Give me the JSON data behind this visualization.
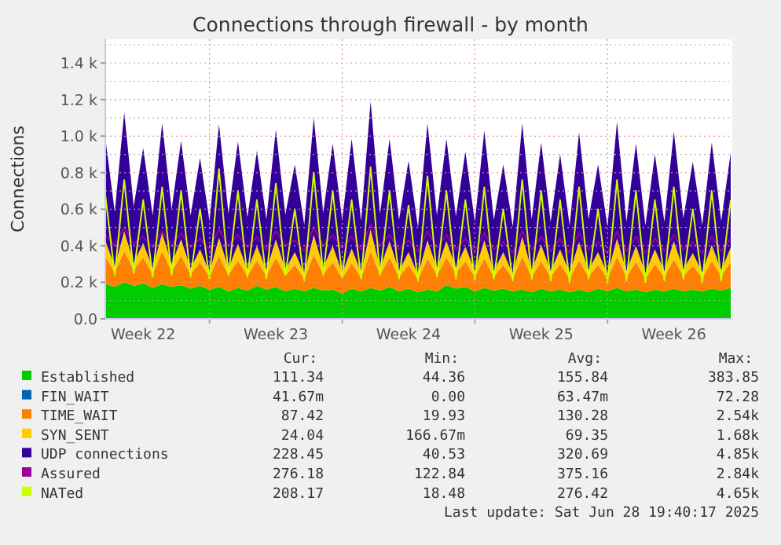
{
  "chart_data": {
    "type": "area",
    "stacked": true,
    "title": "Connections through firewall - by month",
    "ylabel": "Connections",
    "legend": "bottom",
    "grid": true,
    "x": [
      "2025-05-27T12:00",
      "2025-05-28T00:00",
      "2025-05-28T12:00",
      "2025-05-29T00:00",
      "2025-05-29T12:00",
      "2025-05-30T00:00",
      "2025-05-30T12:00",
      "2025-05-31T00:00",
      "2025-05-31T12:00",
      "2025-06-01T00:00",
      "2025-06-01T12:00",
      "2025-06-02T00:00",
      "2025-06-02T12:00",
      "2025-06-03T00:00",
      "2025-06-03T12:00",
      "2025-06-04T00:00",
      "2025-06-04T12:00",
      "2025-06-05T00:00",
      "2025-06-05T12:00",
      "2025-06-06T00:00",
      "2025-06-06T12:00",
      "2025-06-07T00:00",
      "2025-06-07T12:00",
      "2025-06-08T00:00",
      "2025-06-08T12:00",
      "2025-06-09T00:00",
      "2025-06-09T12:00",
      "2025-06-10T00:00",
      "2025-06-10T12:00",
      "2025-06-11T00:00",
      "2025-06-11T12:00",
      "2025-06-12T00:00",
      "2025-06-12T12:00",
      "2025-06-13T00:00",
      "2025-06-13T12:00",
      "2025-06-14T00:00",
      "2025-06-14T12:00",
      "2025-06-15T00:00",
      "2025-06-15T12:00",
      "2025-06-16T00:00",
      "2025-06-16T12:00",
      "2025-06-17T00:00",
      "2025-06-17T12:00",
      "2025-06-18T00:00",
      "2025-06-18T12:00",
      "2025-06-19T00:00",
      "2025-06-19T12:00",
      "2025-06-20T00:00",
      "2025-06-20T12:00",
      "2025-06-21T00:00",
      "2025-06-21T12:00",
      "2025-06-22T00:00",
      "2025-06-22T12:00",
      "2025-06-23T00:00",
      "2025-06-23T12:00",
      "2025-06-24T00:00",
      "2025-06-24T12:00",
      "2025-06-25T00:00",
      "2025-06-25T12:00",
      "2025-06-26T00:00",
      "2025-06-26T12:00",
      "2025-06-27T00:00",
      "2025-06-27T12:00",
      "2025-06-28T00:00",
      "2025-06-28T12:00",
      "2025-06-29T00:00",
      "2025-06-29T12:00"
    ],
    "xlim": [
      "2025-05-27T12:00",
      "2025-06-29T14:00"
    ],
    "xticks": [
      {
        "value": "2025-05-29T12:00",
        "label": "Week 22"
      },
      {
        "value": "2025-06-02T00:00",
        "label": null
      },
      {
        "value": "2025-06-05T12:00",
        "label": "Week 23"
      },
      {
        "value": "2025-06-09T00:00",
        "label": null
      },
      {
        "value": "2025-06-12T12:00",
        "label": "Week 24"
      },
      {
        "value": "2025-06-16T00:00",
        "label": null
      },
      {
        "value": "2025-06-19T12:00",
        "label": "Week 25"
      },
      {
        "value": "2025-06-23T00:00",
        "label": null
      },
      {
        "value": "2025-06-26T12:00",
        "label": "Week 26"
      }
    ],
    "ylim": [
      0,
      1530
    ],
    "yticks": [
      {
        "value": 0,
        "label": "0.0"
      },
      {
        "value": 100,
        "label": null
      },
      {
        "value": 200,
        "label": "0.2 k"
      },
      {
        "value": 300,
        "label": null
      },
      {
        "value": 400,
        "label": "0.4 k"
      },
      {
        "value": 500,
        "label": null
      },
      {
        "value": 600,
        "label": "0.6 k"
      },
      {
        "value": 700,
        "label": null
      },
      {
        "value": 800,
        "label": "0.8 k"
      },
      {
        "value": 900,
        "label": null
      },
      {
        "value": 1000,
        "label": "1.0 k"
      },
      {
        "value": 1100,
        "label": null
      },
      {
        "value": 1200,
        "label": "1.2 k"
      },
      {
        "value": 1300,
        "label": null
      },
      {
        "value": 1400,
        "label": "1.4 k"
      },
      {
        "value": 1500,
        "label": null
      }
    ],
    "series": [
      {
        "name": "Established",
        "color": "#00cc00",
        "values": [
          190,
          175,
          200,
          180,
          195,
          170,
          190,
          175,
          185,
          165,
          180,
          160,
          175,
          150,
          170,
          155,
          180,
          160,
          175,
          150,
          165,
          150,
          170,
          155,
          160,
          140,
          165,
          150,
          170,
          155,
          175,
          150,
          165,
          145,
          160,
          150,
          185,
          165,
          175,
          150,
          170,
          155,
          165,
          150,
          160,
          145,
          165,
          150,
          160,
          145,
          160,
          145,
          165,
          150,
          170,
          150,
          160,
          145,
          160,
          150,
          165,
          150,
          160,
          150,
          165,
          155,
          170
        ]
      },
      {
        "name": "FIN_WAIT",
        "color": "#0066b3",
        "values": [
          null,
          null,
          null,
          null,
          null,
          null,
          null,
          null,
          null,
          null,
          null,
          null,
          null,
          null,
          null,
          null,
          null,
          null,
          null,
          null,
          null,
          null,
          null,
          null,
          null,
          null,
          null,
          null,
          null,
          null,
          null,
          null,
          null,
          null,
          null,
          null,
          null,
          null,
          null,
          null,
          null,
          null,
          null,
          null,
          null,
          null,
          null,
          null,
          null,
          null,
          null,
          null,
          null,
          null,
          null,
          null,
          null,
          null,
          null,
          null,
          null,
          null,
          null,
          null,
          null,
          null,
          null
        ]
      },
      {
        "name": "TIME_WAIT",
        "color": "#ff8000",
        "values": [
          150,
          80,
          170,
          90,
          140,
          75,
          180,
          85,
          160,
          80,
          130,
          70,
          170,
          90,
          150,
          80,
          140,
          75,
          160,
          85,
          130,
          70,
          180,
          90,
          150,
          80,
          140,
          75,
          200,
          85,
          160,
          80,
          130,
          70,
          170,
          90,
          150,
          85,
          140,
          80,
          160,
          75,
          130,
          70,
          180,
          85,
          150,
          80,
          140,
          75,
          160,
          85,
          130,
          70,
          170,
          80,
          150,
          75,
          140,
          80,
          160,
          85,
          130,
          75,
          150,
          80,
          140
        ]
      },
      {
        "name": "SYN_SENT",
        "color": "#ffcc00",
        "values": [
          90,
          30,
          110,
          35,
          80,
          30,
          100,
          40,
          90,
          30,
          70,
          25,
          100,
          35,
          90,
          30,
          80,
          30,
          100,
          35,
          70,
          25,
          110,
          35,
          90,
          30,
          80,
          30,
          120,
          35,
          90,
          30,
          70,
          25,
          100,
          35,
          90,
          30,
          80,
          30,
          100,
          30,
          70,
          25,
          110,
          35,
          90,
          30,
          80,
          30,
          100,
          35,
          70,
          25,
          100,
          30,
          90,
          30,
          80,
          30,
          100,
          35,
          70,
          30,
          90,
          30,
          80
        ]
      },
      {
        "name": "UDP connections",
        "color": "#330099",
        "values": [
          560,
          300,
          650,
          310,
          520,
          290,
          600,
          300,
          540,
          290,
          500,
          280,
          620,
          300,
          560,
          290,
          520,
          280,
          600,
          300,
          480,
          270,
          640,
          300,
          560,
          290,
          600,
          280,
          700,
          300,
          560,
          280,
          500,
          260,
          640,
          290,
          560,
          280,
          520,
          270,
          600,
          280,
          480,
          260,
          620,
          280,
          560,
          270,
          520,
          260,
          600,
          280,
          480,
          260,
          640,
          270,
          560,
          260,
          520,
          270,
          600,
          280,
          500,
          260,
          560,
          270,
          520
        ]
      },
      {
        "name": "Assured",
        "color": "#990099",
        "type": "line",
        "values": [
          460,
          400,
          500,
          410,
          450,
          390,
          480,
          400,
          470,
          390,
          440,
          380,
          490,
          400,
          460,
          390,
          450,
          380,
          480,
          400,
          430,
          370,
          500,
          400,
          460,
          390,
          450,
          380,
          520,
          400,
          460,
          380,
          430,
          370,
          480,
          390,
          460,
          380,
          440,
          370,
          470,
          380,
          420,
          360,
          480,
          380,
          450,
          370,
          440,
          360,
          470,
          380,
          420,
          360,
          480,
          370,
          450,
          360,
          440,
          370,
          460,
          380,
          420,
          360,
          450,
          370,
          440
        ]
      },
      {
        "name": "NATed",
        "color": "#ccff00",
        "type": "line",
        "values": [
          680,
          240,
          760,
          250,
          650,
          230,
          720,
          240,
          700,
          230,
          600,
          220,
          820,
          240,
          700,
          230,
          650,
          220,
          740,
          240,
          600,
          210,
          800,
          240,
          700,
          230,
          650,
          220,
          830,
          240,
          700,
          220,
          620,
          210,
          780,
          230,
          700,
          220,
          650,
          210,
          720,
          220,
          600,
          210,
          760,
          220,
          700,
          210,
          650,
          200,
          720,
          220,
          600,
          200,
          760,
          210,
          700,
          200,
          650,
          210,
          720,
          220,
          600,
          200,
          700,
          210,
          650
        ]
      }
    ],
    "annotations": [
      "Cur:",
      "Min:",
      "Avg:",
      "Max:",
      "111.34",
      "44.36",
      "155.84",
      "383.85",
      "41.67m",
      "0.00",
      "63.47m",
      "72.28",
      "87.42",
      "19.93",
      "130.28",
      "2.54k",
      "24.04",
      "166.67m",
      "69.35",
      "1.68k",
      "228.45",
      "40.53",
      "320.69",
      "4.85k",
      "276.18",
      "122.84",
      "375.16",
      "2.84k",
      "208.17",
      "18.48",
      "276.42",
      "4.65k",
      "Last update: Sat Jun 28 19:40:17 2025"
    ]
  }
}
